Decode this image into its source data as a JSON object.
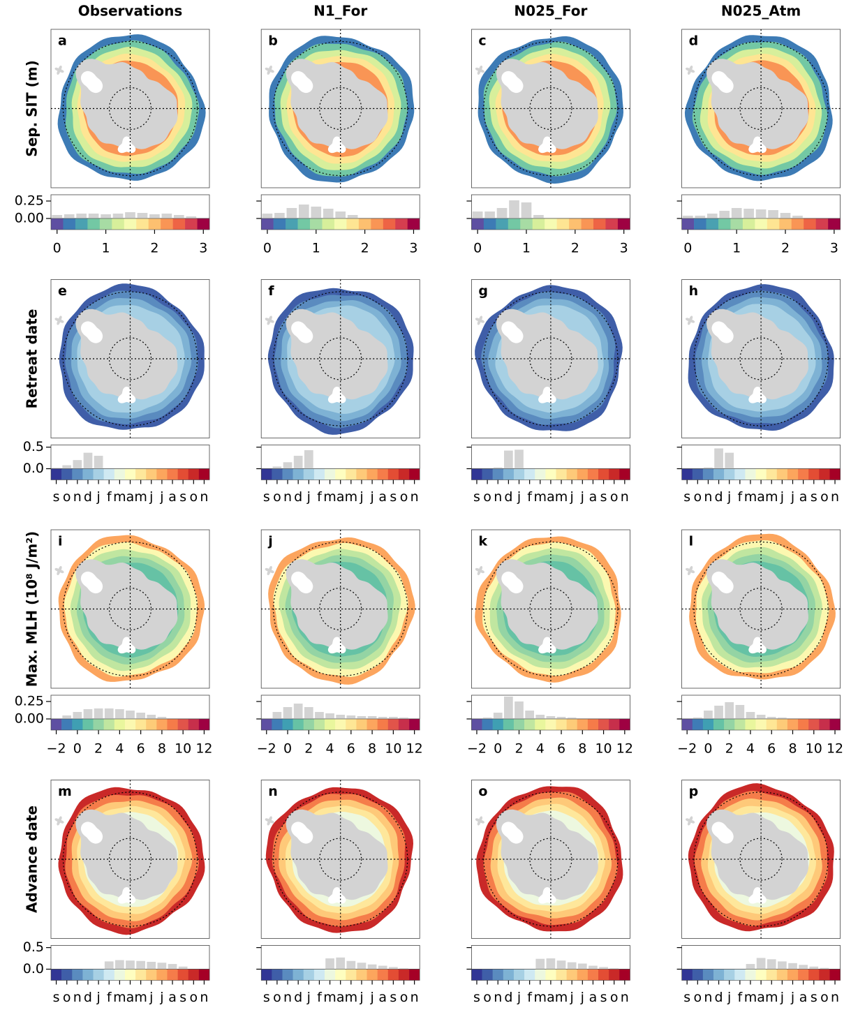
{
  "columns": [
    "Observations",
    "N1_For",
    "N025_For",
    "N025_Atm"
  ],
  "row_labels": [
    "Sep. SIT (m)",
    "Retreat date",
    "Max. MLH (10⁸ J/m²)",
    "Advance date"
  ],
  "chart_data": [
    {
      "type": "histogram",
      "panel": "a",
      "bins": [
        -0.125,
        0.125,
        0.375,
        0.625,
        0.875,
        1.125,
        1.375,
        1.625,
        1.875,
        2.125,
        2.375,
        2.625,
        2.875,
        3.125
      ],
      "xlim": [
        -0.125,
        3.125
      ],
      "xticks": [
        0,
        1,
        2,
        3
      ],
      "values": [
        0.05,
        0.06,
        0.07,
        0.07,
        0.06,
        0.07,
        0.09,
        0.08,
        0.06,
        0.07,
        0.05,
        0.03,
        0.01
      ],
      "ylim": [
        0,
        0.34
      ],
      "yticks": [
        {
          "value": 0,
          "label": "0.00"
        },
        {
          "value": 0.25,
          "label": "0.25"
        }
      ],
      "colors": [
        "#5e4fa2",
        "#3d7bb5",
        "#4aa1b1",
        "#73c8a4",
        "#a7dca4",
        "#d7ef9b",
        "#f6fbb2",
        "#fee593",
        "#fdc070",
        "#f99555",
        "#ee6445",
        "#d53e4f",
        "#9e0142"
      ]
    },
    {
      "type": "histogram",
      "panel": "b",
      "bins": [
        -0.125,
        0.125,
        0.375,
        0.625,
        0.875,
        1.125,
        1.375,
        1.625,
        1.875,
        2.125,
        2.375,
        2.625,
        2.875,
        3.125
      ],
      "xlim": [
        -0.125,
        3.125
      ],
      "xticks": [
        0,
        1,
        2,
        3
      ],
      "values": [
        0.07,
        0.08,
        0.15,
        0.2,
        0.17,
        0.14,
        0.1,
        0.05,
        0.01,
        0,
        0,
        0,
        0
      ],
      "ylim": [
        0,
        0.34
      ],
      "yticks": [
        0,
        0.25
      ],
      "colors": [
        "#5e4fa2",
        "#3d7bb5",
        "#4aa1b1",
        "#73c8a4",
        "#a7dca4",
        "#d7ef9b",
        "#f6fbb2",
        "#fee593",
        "#fdc070",
        "#f99555",
        "#ee6445",
        "#d53e4f",
        "#9e0142"
      ]
    },
    {
      "type": "histogram",
      "panel": "c",
      "bins": [
        -0.125,
        0.125,
        0.375,
        0.625,
        0.875,
        1.125,
        1.375,
        1.625,
        1.875,
        2.125,
        2.375,
        2.625,
        2.875,
        3.125
      ],
      "xlim": [
        -0.125,
        3.125
      ],
      "xticks": [
        0,
        1,
        2,
        3
      ],
      "values": [
        0.1,
        0.1,
        0.15,
        0.26,
        0.23,
        0.05,
        0,
        0,
        0,
        0,
        0,
        0,
        0
      ],
      "ylim": [
        0,
        0.34
      ],
      "yticks": [
        0,
        0.25
      ],
      "colors": [
        "#5e4fa2",
        "#3d7bb5",
        "#4aa1b1",
        "#73c8a4",
        "#a7dca4",
        "#d7ef9b",
        "#f6fbb2",
        "#fee593",
        "#fdc070",
        "#f99555",
        "#ee6445",
        "#d53e4f",
        "#9e0142"
      ]
    },
    {
      "type": "histogram",
      "panel": "d",
      "bins": [
        -0.125,
        0.125,
        0.375,
        0.625,
        0.875,
        1.125,
        1.375,
        1.625,
        1.875,
        2.125,
        2.375,
        2.625,
        2.875,
        3.125
      ],
      "xlim": [
        -0.125,
        3.125
      ],
      "xticks": [
        0,
        1,
        2,
        3
      ],
      "values": [
        0.04,
        0.04,
        0.07,
        0.11,
        0.15,
        0.14,
        0.13,
        0.12,
        0.08,
        0.04,
        0.01,
        0,
        0
      ],
      "ylim": [
        0,
        0.34
      ],
      "yticks": [
        0,
        0.25
      ],
      "colors": [
        "#5e4fa2",
        "#3d7bb5",
        "#4aa1b1",
        "#73c8a4",
        "#a7dca4",
        "#d7ef9b",
        "#f6fbb2",
        "#fee593",
        "#fdc070",
        "#f99555",
        "#ee6445",
        "#d53e4f",
        "#9e0142"
      ]
    },
    {
      "type": "bar",
      "panel": "e",
      "categories": [
        "s",
        "o",
        "n",
        "d",
        "j",
        "f",
        "m",
        "a",
        "m",
        "j",
        "j",
        "a",
        "s",
        "o",
        "n"
      ],
      "values": [
        0.02,
        0.08,
        0.2,
        0.37,
        0.3,
        0,
        0,
        0,
        0,
        0,
        0,
        0,
        0,
        0,
        0
      ],
      "ylim": [
        0,
        0.55
      ],
      "yticks": [
        {
          "value": 0,
          "label": "0.0"
        },
        {
          "value": 0.5,
          "label": "0.5"
        }
      ],
      "colors": [
        "#313695",
        "#3f5ea8",
        "#5a8bbf",
        "#7eb2d4",
        "#a7d0e4",
        "#cfe9f2",
        "#edf8df",
        "#fefec0",
        "#fee79b",
        "#fec979",
        "#fca55d",
        "#f57c4a",
        "#e34d34",
        "#c92928",
        "#a50026"
      ]
    },
    {
      "type": "bar",
      "panel": "f",
      "categories": [
        "s",
        "o",
        "n",
        "d",
        "j",
        "f",
        "m",
        "a",
        "m",
        "j",
        "j",
        "a",
        "s",
        "o",
        "n"
      ],
      "values": [
        0,
        0.05,
        0.15,
        0.3,
        0.43,
        0,
        0,
        0,
        0,
        0,
        0,
        0,
        0,
        0,
        0
      ],
      "ylim": [
        0,
        0.55
      ],
      "yticks": [
        0,
        0.5
      ],
      "colors": [
        "#313695",
        "#3f5ea8",
        "#5a8bbf",
        "#7eb2d4",
        "#a7d0e4",
        "#cfe9f2",
        "#edf8df",
        "#fefec0",
        "#fee79b",
        "#fec979",
        "#fca55d",
        "#f57c4a",
        "#e34d34",
        "#c92928",
        "#a50026"
      ]
    },
    {
      "type": "bar",
      "panel": "g",
      "categories": [
        "s",
        "o",
        "n",
        "d",
        "j",
        "f",
        "m",
        "a",
        "m",
        "j",
        "j",
        "a",
        "s",
        "o",
        "n"
      ],
      "values": [
        0,
        0,
        0.03,
        0.42,
        0.44,
        0,
        0,
        0,
        0,
        0,
        0,
        0,
        0,
        0,
        0
      ],
      "ylim": [
        0,
        0.55
      ],
      "yticks": [
        0,
        0.5
      ],
      "colors": [
        "#313695",
        "#3f5ea8",
        "#5a8bbf",
        "#7eb2d4",
        "#a7d0e4",
        "#cfe9f2",
        "#edf8df",
        "#fefec0",
        "#fee79b",
        "#fec979",
        "#fca55d",
        "#f57c4a",
        "#e34d34",
        "#c92928",
        "#a50026"
      ]
    },
    {
      "type": "bar",
      "panel": "h",
      "categories": [
        "s",
        "o",
        "n",
        "d",
        "j",
        "f",
        "m",
        "a",
        "m",
        "j",
        "j",
        "a",
        "s",
        "o",
        "n"
      ],
      "values": [
        0,
        0,
        0.03,
        0.47,
        0.37,
        0,
        0,
        0,
        0,
        0,
        0,
        0,
        0,
        0,
        0
      ],
      "ylim": [
        0,
        0.55
      ],
      "yticks": [
        0,
        0.5
      ],
      "colors": [
        "#313695",
        "#3f5ea8",
        "#5a8bbf",
        "#7eb2d4",
        "#a7d0e4",
        "#cfe9f2",
        "#edf8df",
        "#fefec0",
        "#fee79b",
        "#fec979",
        "#fca55d",
        "#f57c4a",
        "#e34d34",
        "#c92928",
        "#a50026"
      ]
    },
    {
      "type": "histogram",
      "panel": "i",
      "bins": [
        -2.5,
        -1.5,
        -0.5,
        0.5,
        1.5,
        2.5,
        3.5,
        4.5,
        5.5,
        6.5,
        7.5,
        8.5,
        9.5,
        10.5,
        11.5,
        12.5
      ],
      "xlim": [
        -2.5,
        12.5
      ],
      "xticks": [
        {
          "value": -2,
          "label": "−2"
        },
        0,
        2,
        4,
        6,
        8,
        10,
        12
      ],
      "values": [
        0,
        0.05,
        0.1,
        0.14,
        0.15,
        0.15,
        0.14,
        0.12,
        0.09,
        0.06,
        0.03,
        0.01,
        0,
        0,
        0
      ],
      "ylim": [
        0,
        0.34
      ],
      "yticks": [
        {
          "value": 0,
          "label": "0.00"
        },
        {
          "value": 0.25,
          "label": "0.25"
        }
      ],
      "colors": [
        "#5e4fa2",
        "#3f7cb6",
        "#3f9fb3",
        "#66c2a5",
        "#94d4a4",
        "#c0e6a0",
        "#e9f69d",
        "#fbf8b0",
        "#fee695",
        "#fdcb78",
        "#fca55e",
        "#f57b49",
        "#e1544a",
        "#c72f4b",
        "#9e0142"
      ]
    },
    {
      "type": "histogram",
      "panel": "j",
      "bins": [
        -2.5,
        -1.5,
        -0.5,
        0.5,
        1.5,
        2.5,
        3.5,
        4.5,
        5.5,
        6.5,
        7.5,
        8.5,
        9.5,
        10.5,
        11.5,
        12.5
      ],
      "xlim": [
        -2.5,
        12.5
      ],
      "xticks": [
        {
          "value": -2,
          "label": "−2"
        },
        0,
        2,
        4,
        6,
        8,
        10,
        12
      ],
      "values": [
        0,
        0.1,
        0.17,
        0.22,
        0.17,
        0.1,
        0.08,
        0.06,
        0.05,
        0.04,
        0.04,
        0.03,
        0.03,
        0.02,
        0.01
      ],
      "ylim": [
        0,
        0.34
      ],
      "yticks": [
        0,
        0.25
      ],
      "colors": [
        "#5e4fa2",
        "#3f7cb6",
        "#3f9fb3",
        "#66c2a5",
        "#94d4a4",
        "#c0e6a0",
        "#e9f69d",
        "#fbf8b0",
        "#fee695",
        "#fdcb78",
        "#fca55e",
        "#f57b49",
        "#e1544a",
        "#c72f4b",
        "#9e0142"
      ]
    },
    {
      "type": "histogram",
      "panel": "k",
      "bins": [
        -2.5,
        -1.5,
        -0.5,
        0.5,
        1.5,
        2.5,
        3.5,
        4.5,
        5.5,
        6.5,
        7.5,
        8.5,
        9.5,
        10.5,
        11.5,
        12.5
      ],
      "xlim": [
        -2.5,
        12.5
      ],
      "xticks": [
        {
          "value": -2,
          "label": "−2"
        },
        0,
        2,
        4,
        6,
        8,
        10,
        12
      ],
      "values": [
        0,
        0.02,
        0.09,
        0.32,
        0.25,
        0.12,
        0.06,
        0.04,
        0.03,
        0.02,
        0.01,
        0,
        0,
        0,
        0
      ],
      "ylim": [
        0,
        0.34
      ],
      "yticks": [
        0,
        0.25
      ],
      "colors": [
        "#5e4fa2",
        "#3f7cb6",
        "#3f9fb3",
        "#66c2a5",
        "#94d4a4",
        "#c0e6a0",
        "#e9f69d",
        "#fbf8b0",
        "#fee695",
        "#fdcb78",
        "#fca55e",
        "#f57b49",
        "#e1544a",
        "#c72f4b",
        "#9e0142"
      ]
    },
    {
      "type": "histogram",
      "panel": "l",
      "bins": [
        -2.5,
        -1.5,
        -0.5,
        0.5,
        1.5,
        2.5,
        3.5,
        4.5,
        5.5,
        6.5,
        7.5,
        8.5,
        9.5,
        10.5,
        11.5,
        12.5
      ],
      "xlim": [
        -2.5,
        12.5
      ],
      "xticks": [
        {
          "value": -2,
          "label": "−2"
        },
        0,
        2,
        4,
        6,
        8,
        10,
        12
      ],
      "values": [
        0,
        0.02,
        0.12,
        0.19,
        0.24,
        0.2,
        0.1,
        0.06,
        0.03,
        0.02,
        0.01,
        0,
        0,
        0,
        0
      ],
      "ylim": [
        0,
        0.34
      ],
      "yticks": [
        0,
        0.25
      ],
      "colors": [
        "#5e4fa2",
        "#3f7cb6",
        "#3f9fb3",
        "#66c2a5",
        "#94d4a4",
        "#c0e6a0",
        "#e9f69d",
        "#fbf8b0",
        "#fee695",
        "#fdcb78",
        "#fca55e",
        "#f57b49",
        "#e1544a",
        "#c72f4b",
        "#9e0142"
      ]
    },
    {
      "type": "bar",
      "panel": "m",
      "categories": [
        "s",
        "o",
        "n",
        "d",
        "j",
        "f",
        "m",
        "a",
        "m",
        "j",
        "j",
        "a",
        "s",
        "o",
        "n"
      ],
      "values": [
        0,
        0,
        0,
        0,
        0,
        0.18,
        0.21,
        0.2,
        0.19,
        0.17,
        0.15,
        0.12,
        0.06,
        0,
        0
      ],
      "ylim": [
        0,
        0.55
      ],
      "yticks": [
        {
          "value": 0,
          "label": "0.0"
        },
        {
          "value": 0.5,
          "label": "0.5"
        }
      ],
      "colors": [
        "#313695",
        "#3f5ea8",
        "#5a8bbf",
        "#7eb2d4",
        "#a7d0e4",
        "#cfe9f2",
        "#edf8df",
        "#fefec0",
        "#fee79b",
        "#fec979",
        "#fca55d",
        "#f57c4a",
        "#e34d34",
        "#c92928",
        "#a50026"
      ]
    },
    {
      "type": "bar",
      "panel": "n",
      "categories": [
        "s",
        "o",
        "n",
        "d",
        "j",
        "f",
        "m",
        "a",
        "m",
        "j",
        "j",
        "a",
        "s",
        "o",
        "n"
      ],
      "values": [
        0,
        0,
        0,
        0,
        0,
        0,
        0.25,
        0.27,
        0.19,
        0.15,
        0.11,
        0.08,
        0.05,
        0.02,
        0
      ],
      "ylim": [
        0,
        0.55
      ],
      "yticks": [
        0,
        0.5
      ],
      "colors": [
        "#313695",
        "#3f5ea8",
        "#5a8bbf",
        "#7eb2d4",
        "#a7d0e4",
        "#cfe9f2",
        "#edf8df",
        "#fefec0",
        "#fee79b",
        "#fec979",
        "#fca55d",
        "#f57c4a",
        "#e34d34",
        "#c92928",
        "#a50026"
      ]
    },
    {
      "type": "bar",
      "panel": "o",
      "categories": [
        "s",
        "o",
        "n",
        "d",
        "j",
        "f",
        "m",
        "a",
        "m",
        "j",
        "j",
        "a",
        "s",
        "o",
        "n"
      ],
      "values": [
        0,
        0,
        0,
        0,
        0,
        0,
        0.24,
        0.25,
        0.2,
        0.16,
        0.13,
        0.08,
        0.05,
        0.02,
        0
      ],
      "ylim": [
        0,
        0.55
      ],
      "yticks": [
        0,
        0.5
      ],
      "colors": [
        "#313695",
        "#3f5ea8",
        "#5a8bbf",
        "#7eb2d4",
        "#a7d0e4",
        "#cfe9f2",
        "#edf8df",
        "#fefec0",
        "#fee79b",
        "#fec979",
        "#fca55d",
        "#f57c4a",
        "#e34d34",
        "#c92928",
        "#a50026"
      ]
    },
    {
      "type": "bar",
      "panel": "p",
      "categories": [
        "s",
        "o",
        "n",
        "d",
        "j",
        "f",
        "m",
        "a",
        "m",
        "j",
        "j",
        "a",
        "s",
        "o",
        "n"
      ],
      "values": [
        0,
        0,
        0,
        0,
        0,
        0,
        0.12,
        0.26,
        0.23,
        0.18,
        0.14,
        0.1,
        0.06,
        0.03,
        0
      ],
      "ylim": [
        0,
        0.55
      ],
      "yticks": [
        0,
        0.5
      ],
      "colors": [
        "#313695",
        "#3f5ea8",
        "#5a8bbf",
        "#7eb2d4",
        "#a7d0e4",
        "#cfe9f2",
        "#edf8df",
        "#fefec0",
        "#fee79b",
        "#fec979",
        "#fca55d",
        "#f57c4a",
        "#e34d34",
        "#c92928",
        "#a50026"
      ]
    }
  ]
}
